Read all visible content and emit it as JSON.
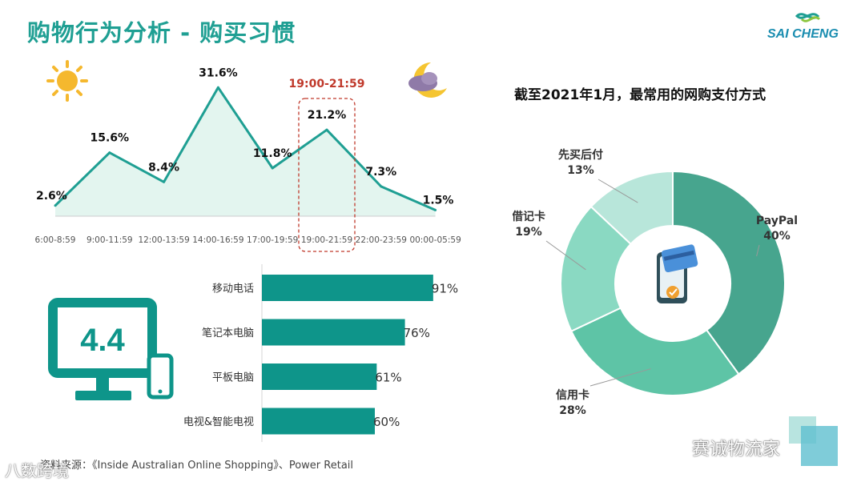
{
  "page": {
    "title": "购物行为分析 - 购买习惯",
    "logo_text": "SAI CHENG",
    "source": "资料来源：《Inside Australian Online Shopping》、Power Retail",
    "watermark_left": "八数跨境",
    "watermark_right": "赛诚物流家",
    "icons": [
      "sun-icon",
      "moon-cloud-icon",
      "computer-monitor-icon",
      "smartphone-icon",
      "phone-card-payment-icon",
      "wechat-icon"
    ]
  },
  "colors": {
    "teal": "#1f9f93",
    "bar": "#0e958a",
    "area_fill": "#e3f5ef",
    "highlight": "#c0392b",
    "donut_paypal": "#47a58e",
    "donut_credit": "#5ec4a6",
    "donut_debit": "#8ad9c2",
    "donut_bnpl": "#b8e6da"
  },
  "device_stat": "4.4",
  "chart_data": [
    {
      "type": "area",
      "title": "",
      "categories": [
        "6:00-8:59",
        "9:00-11:59",
        "12:00-13:59",
        "14:00-16:59",
        "17:00-19:59",
        "19:00-21:59",
        "22:00-23:59",
        "00:00-05:59"
      ],
      "series": [
        {
          "values": [
            2.6,
            15.6,
            8.4,
            31.6,
            11.8,
            21.2,
            7.3,
            1.5
          ]
        }
      ],
      "value_labels": [
        "2.6%",
        "15.6%",
        "8.4%",
        "31.6%",
        "11.8%",
        "21.2%",
        "7.3%",
        "1.5%"
      ],
      "highlight": {
        "category": "19:00-21:59",
        "label": "19:00-21:59"
      },
      "ylim": [
        0,
        35
      ],
      "grid": false
    },
    {
      "type": "bar",
      "orientation": "horizontal",
      "title": "",
      "categories": [
        "移动电话",
        "笔记本电脑",
        "平板电脑",
        "电视&智能电视"
      ],
      "values": [
        91,
        76,
        61,
        60
      ],
      "value_labels": [
        "91%",
        "76%",
        "61%",
        "60%"
      ],
      "xlim": [
        0,
        100
      ],
      "grid": false
    },
    {
      "type": "pie",
      "subtype": "donut",
      "title": "截至2021年1月，最常用的网购支付方式",
      "slices": [
        {
          "label": "PayPal",
          "value": 40,
          "value_label": "40%"
        },
        {
          "label": "信用卡",
          "value": 28,
          "value_label": "28%"
        },
        {
          "label": "借记卡",
          "value": 19,
          "value_label": "19%"
        },
        {
          "label": "先买后付",
          "value": 13,
          "value_label": "13%"
        }
      ]
    }
  ]
}
